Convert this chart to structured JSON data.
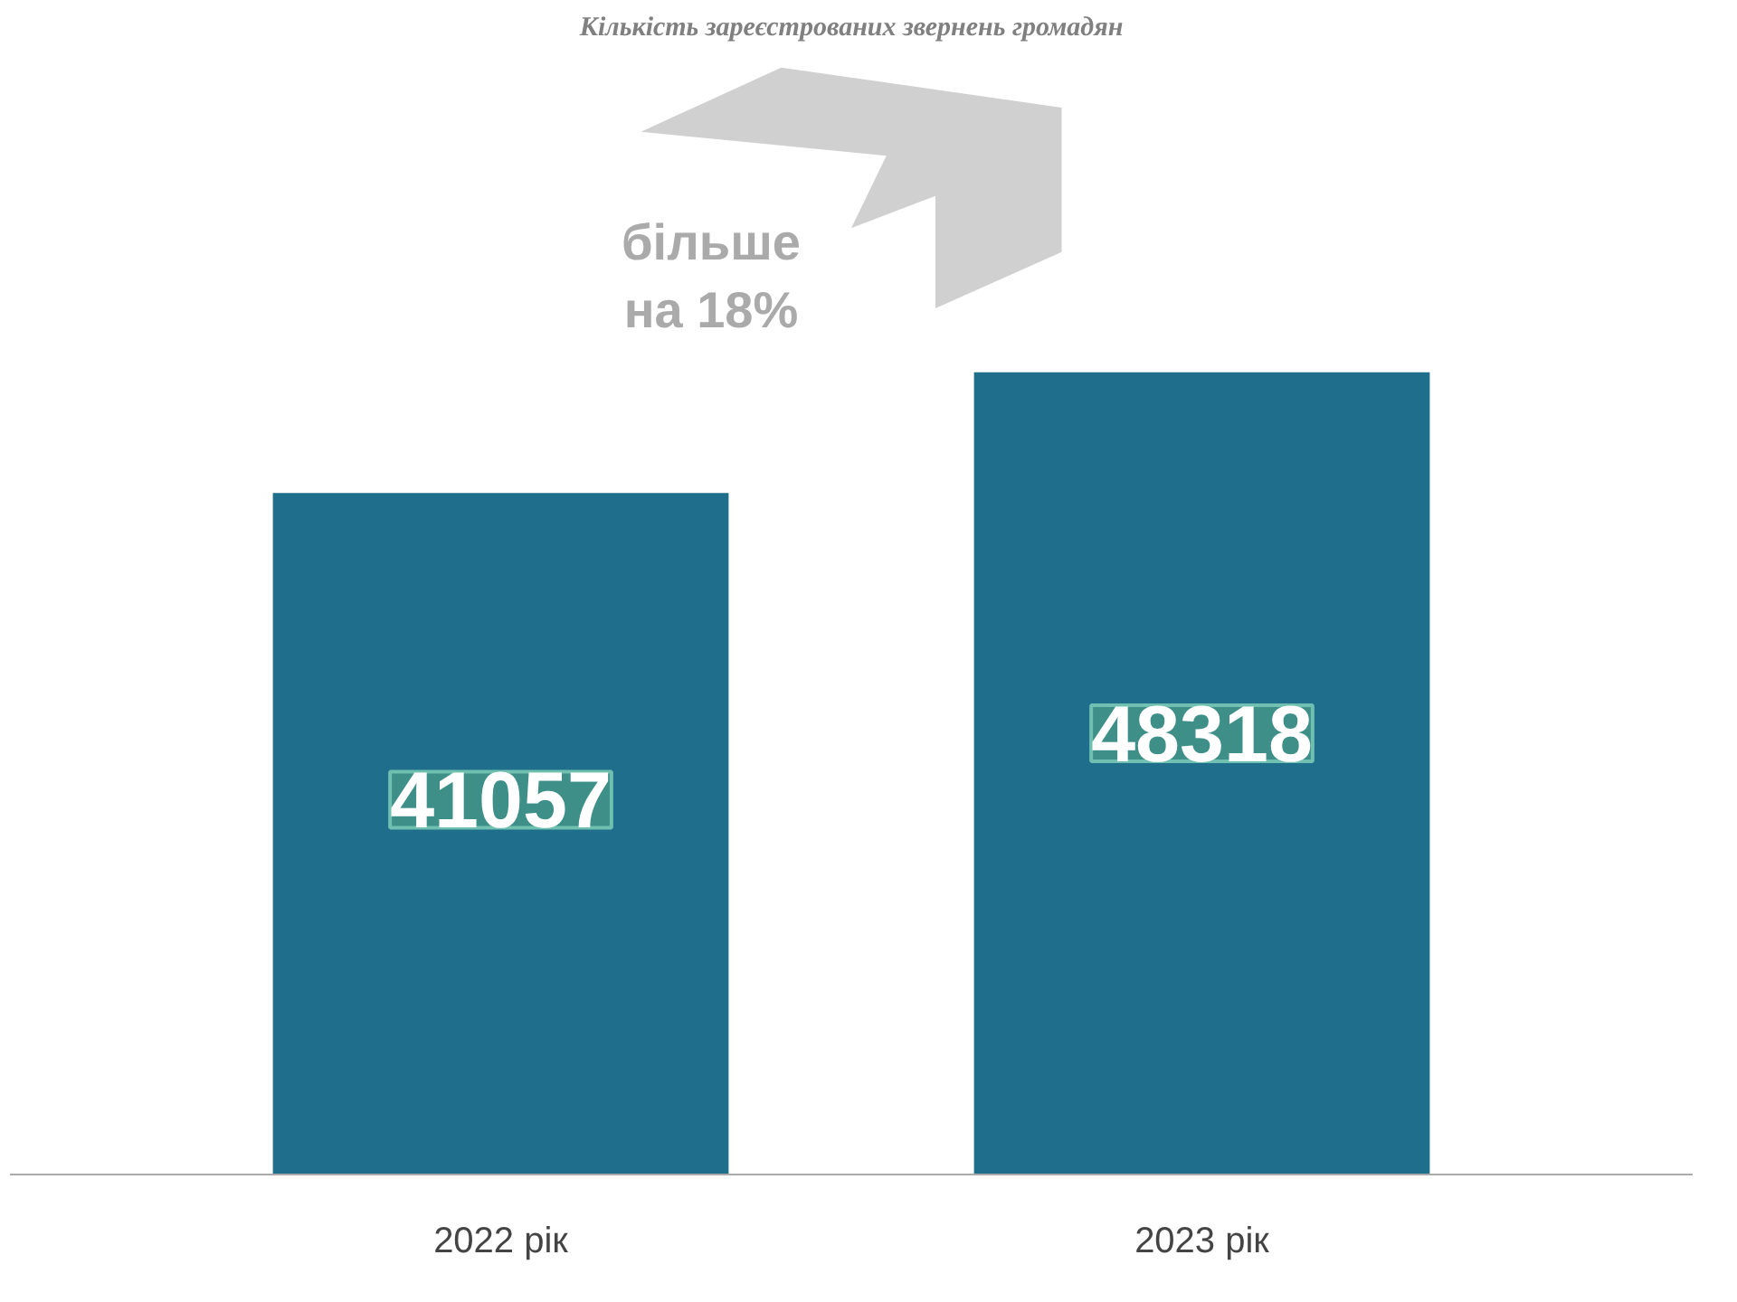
{
  "chart_data": {
    "type": "bar",
    "title": "Кількість зареєстрованих звернень громадян",
    "categories": [
      "2022 рік",
      "2023 рік"
    ],
    "values": [
      41057,
      48318
    ],
    "color": "#1f6e8c",
    "data_labels": true,
    "annotations": [
      "більше\nна 18%"
    ],
    "grid": false
  }
}
